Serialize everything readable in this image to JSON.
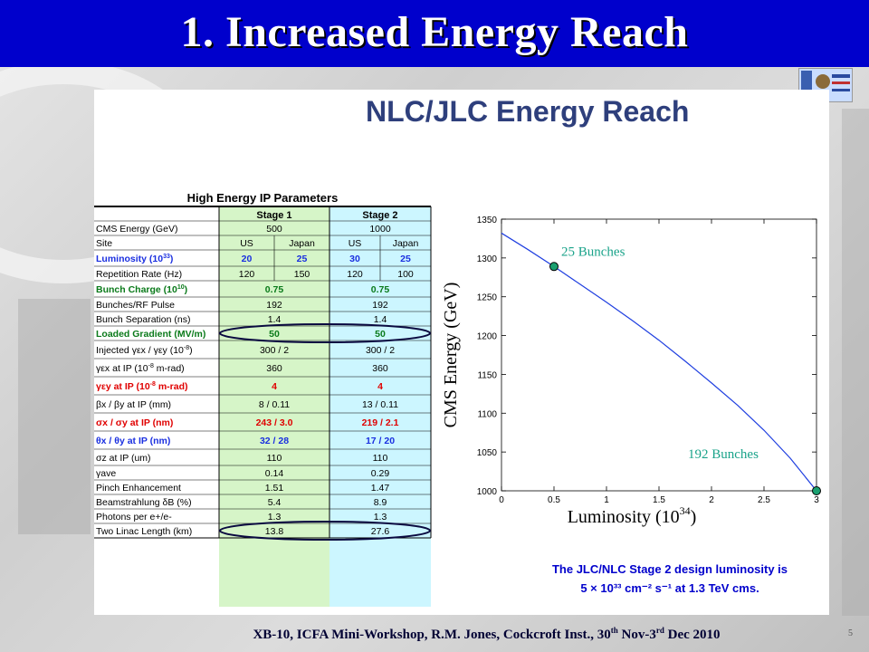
{
  "slide": {
    "title": "1. Increased Energy Reach",
    "panel_title": "NLC/JLC Energy Reach",
    "footer_main": "XB-10, ICFA Mini-Workshop, R.M. Jones, Cockcroft Inst., 30",
    "footer_sup1": "th",
    "footer_mid": " Nov-3",
    "footer_sup2": "rd",
    "footer_end": " Dec 2010",
    "page_number": "5"
  },
  "table": {
    "title": "High Energy IP Parameters",
    "stage1": "Stage 1",
    "stage2": "Stage 2",
    "rows": [
      {
        "label": "CMS Energy (GeV)",
        "s1": "500",
        "s2": "1000",
        "style": "normal",
        "span": true
      },
      {
        "label": "Site",
        "s1a": "US",
        "s1b": "Japan",
        "s2a": "US",
        "s2b": "Japan",
        "style": "normal",
        "span": false
      },
      {
        "label": "Luminosity (10",
        "label_sup": "33",
        "label_end": ")",
        "s1a": "20",
        "s1b": "25",
        "s2a": "30",
        "s2b": "25",
        "style": "blue",
        "span": false
      },
      {
        "label": "Repetition Rate (Hz)",
        "s1a": "120",
        "s1b": "150",
        "s2a": "120",
        "s2b": "100",
        "style": "normal",
        "span": false
      },
      {
        "label": "Bunch Charge (10",
        "label_sup": "10",
        "label_end": ")",
        "s1": "0.75",
        "s2": "0.75",
        "style": "green",
        "span": true
      },
      {
        "label": "Bunches/RF Pulse",
        "s1": "192",
        "s2": "192",
        "style": "normal",
        "span": true
      },
      {
        "label": "Bunch Separation (ns)",
        "s1": "1.4",
        "s2": "1.4",
        "style": "normal",
        "span": true
      },
      {
        "label": "Loaded Gradient (MV/m)",
        "s1": "50",
        "s2": "50",
        "style": "green",
        "span": true
      },
      {
        "label": "Injected γεx / γεy (10",
        "label_sup": "-8",
        "label_end": ")",
        "s1": "300 / 2",
        "s2": "300 / 2",
        "style": "normal",
        "span": true
      },
      {
        "label": "γεx at IP (10",
        "label_sup": "-8",
        "label_end": " m-rad)",
        "s1": "360",
        "s2": "360",
        "style": "normal",
        "span": true
      },
      {
        "label": "γεy at IP (10",
        "label_sup": "-8",
        "label_end": " m-rad)",
        "s1": "4",
        "s2": "4",
        "style": "red",
        "span": true
      },
      {
        "label": "βx / βy at IP (mm)",
        "s1": "8 / 0.11",
        "s2": "13 / 0.11",
        "style": "normal",
        "span": true
      },
      {
        "label": "σx / σy at IP (nm)",
        "s1": "243 / 3.0",
        "s2": "219 / 2.1",
        "style": "red",
        "span": true
      },
      {
        "label": "θx / θy at IP (nm)",
        "s1": "32 / 28",
        "s2": "17 / 20",
        "style": "blue",
        "span": true
      },
      {
        "label": "σz at IP (um)",
        "s1": "110",
        "s2": "110",
        "style": "normal",
        "span": true
      },
      {
        "label": "γave",
        "s1": "0.14",
        "s2": "0.29",
        "style": "normal",
        "span": true
      },
      {
        "label": "Pinch Enhancement",
        "s1": "1.51",
        "s2": "1.47",
        "style": "normal",
        "span": true
      },
      {
        "label": "Beamstrahlung δB (%)",
        "s1": "5.4",
        "s2": "8.9",
        "style": "normal",
        "span": true
      },
      {
        "label": "Photons per e+/e-",
        "s1": "1.3",
        "s2": "1.3",
        "style": "normal",
        "span": true
      },
      {
        "label": "Two Linac Length (km)",
        "s1": "13.8",
        "s2": "27.6",
        "style": "normal",
        "span": true
      }
    ]
  },
  "note": {
    "line1": "The JLC/NLC Stage 2 design luminosity is",
    "line2": "5 × 10³³ cm⁻² s⁻¹ at 1.3 TeV cms."
  },
  "colors": {
    "header_bg": "#0000cc",
    "stage1_fill": "#d6f5c8",
    "stage2_fill": "#ccf6ff",
    "curve": "#1f3fe0",
    "annotation": "#1aa38a",
    "blue_text": "#1a2fe0",
    "green_text": "#0a7a1a",
    "red_text": "#e00000"
  },
  "chart_data": {
    "type": "line",
    "title": "",
    "xlabel": "Luminosity (10",
    "xlabel_sup": "34",
    "xlabel_end": ")",
    "ylabel": "CMS Energy (GeV)",
    "xlim": [
      0,
      3
    ],
    "ylim": [
      1000,
      1350
    ],
    "x_ticks": [
      "0",
      "0.5",
      "1",
      "1.5",
      "2",
      "2.5",
      "3"
    ],
    "y_ticks": [
      "1000",
      "1050",
      "1100",
      "1150",
      "1200",
      "1250",
      "1300",
      "1350"
    ],
    "series": [
      {
        "x": [
          0,
          0.25,
          0.5,
          0.75,
          1.0,
          1.25,
          1.5,
          1.75,
          2.0,
          2.25,
          2.5,
          2.75,
          3.0
        ],
        "y": [
          1332,
          1311,
          1289,
          1266,
          1243,
          1219,
          1194,
          1167,
          1139,
          1110,
          1078,
          1042,
          1000
        ]
      }
    ],
    "points": [
      {
        "x": 0.5,
        "y": 1289,
        "label": "25 Bunches"
      },
      {
        "x": 3.0,
        "y": 1000,
        "label": "192 Bunches"
      }
    ]
  }
}
